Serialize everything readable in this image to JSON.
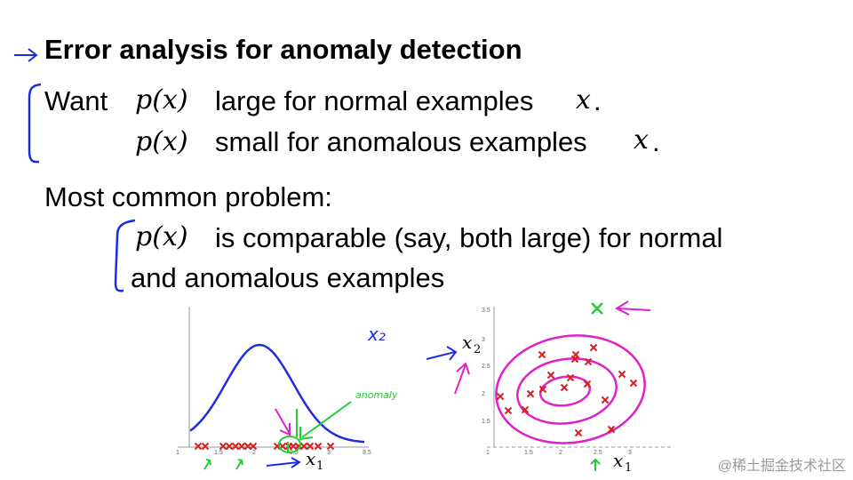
{
  "slide": {
    "title": "Error analysis for anomaly detection",
    "want_label": "Want",
    "px": "p(x)",
    "x_var": "x",
    "line1_text": "large for normal examples",
    "line2_text": "small for anomalous examples",
    "period": ".",
    "common_problem": "Most common problem:",
    "problem_line1": "is comparable (say, both large) for normal",
    "problem_line2": "and anomalous examples"
  },
  "annotations": {
    "x2_handwritten": "x₂",
    "anomaly_handwritten": "anomaly"
  },
  "plot1": {
    "xlabel": "x",
    "xlabel_sub": "1",
    "xticks": [
      "1",
      "1.5",
      "2",
      "2.5",
      "3",
      "3.5"
    ],
    "curve_color": "#1f2de0",
    "marker_color": "#d62020"
  },
  "plot2": {
    "xlabel": "x",
    "xlabel_sub": "1",
    "ylabel": "x",
    "ylabel_sub": "2",
    "xticks": [
      "1",
      "1.5",
      "2",
      "2.5",
      "3"
    ],
    "yticks": [
      "3.5",
      "3",
      "2.5",
      "2",
      "1.5"
    ],
    "contour_color": "#e020c8",
    "marker_color": "#d62020"
  },
  "colors": {
    "pen_blue": "#1a2be8",
    "pen_green": "#22cc33",
    "pen_magenta": "#e020c8"
  },
  "watermark": "@稀土掘金技术社区"
}
